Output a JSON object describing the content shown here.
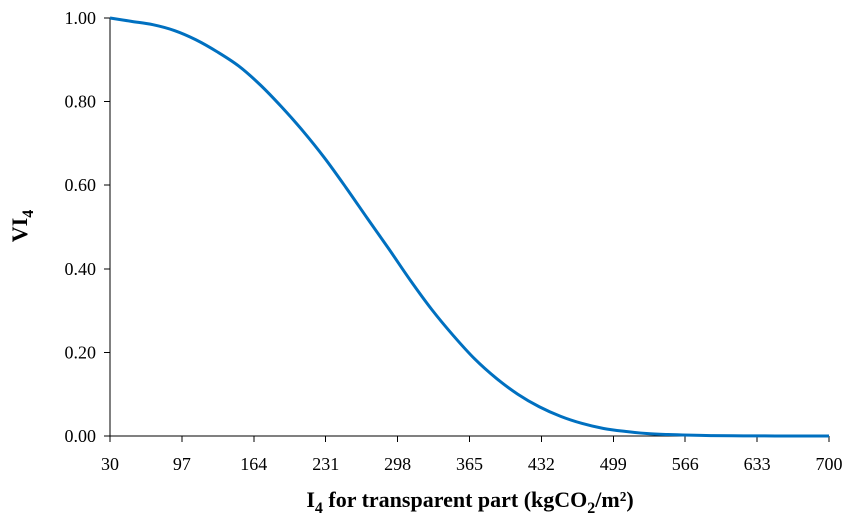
{
  "chart_data": {
    "type": "line",
    "title": "",
    "xlabel": {
      "main": "I",
      "main_sub": "4",
      "text": " for transparent part (kgCO",
      "text_sub": "2",
      "end": "/m²)"
    },
    "ylabel": {
      "main": "VI",
      "sub": "4"
    },
    "x_ticks": [
      "30",
      "97",
      "164",
      "231",
      "298",
      "365",
      "432",
      "499",
      "566",
      "633",
      "700"
    ],
    "y_ticks": [
      "0.00",
      "0.20",
      "0.40",
      "0.60",
      "0.80",
      "1.00"
    ],
    "xlim": [
      30,
      700
    ],
    "ylim": [
      0,
      1
    ],
    "grid": false,
    "legend": "none",
    "series": [
      {
        "color": "#0070C0",
        "x": [
          30,
          50,
          70,
          90,
          110,
          130,
          150,
          170,
          190,
          210,
          230,
          250,
          270,
          290,
          310,
          330,
          350,
          370,
          390,
          410,
          430,
          450,
          470,
          490,
          510,
          530,
          550,
          570,
          590,
          610,
          630,
          650,
          670,
          700
        ],
        "y": [
          1.0,
          0.992,
          0.984,
          0.97,
          0.948,
          0.919,
          0.885,
          0.84,
          0.787,
          0.729,
          0.665,
          0.594,
          0.52,
          0.447,
          0.372,
          0.302,
          0.24,
          0.184,
          0.138,
          0.1,
          0.07,
          0.047,
          0.03,
          0.018,
          0.011,
          0.006,
          0.0035,
          0.002,
          0.001,
          0.0006,
          0.0003,
          0.0001,
          0.0,
          0.0
        ]
      }
    ]
  }
}
